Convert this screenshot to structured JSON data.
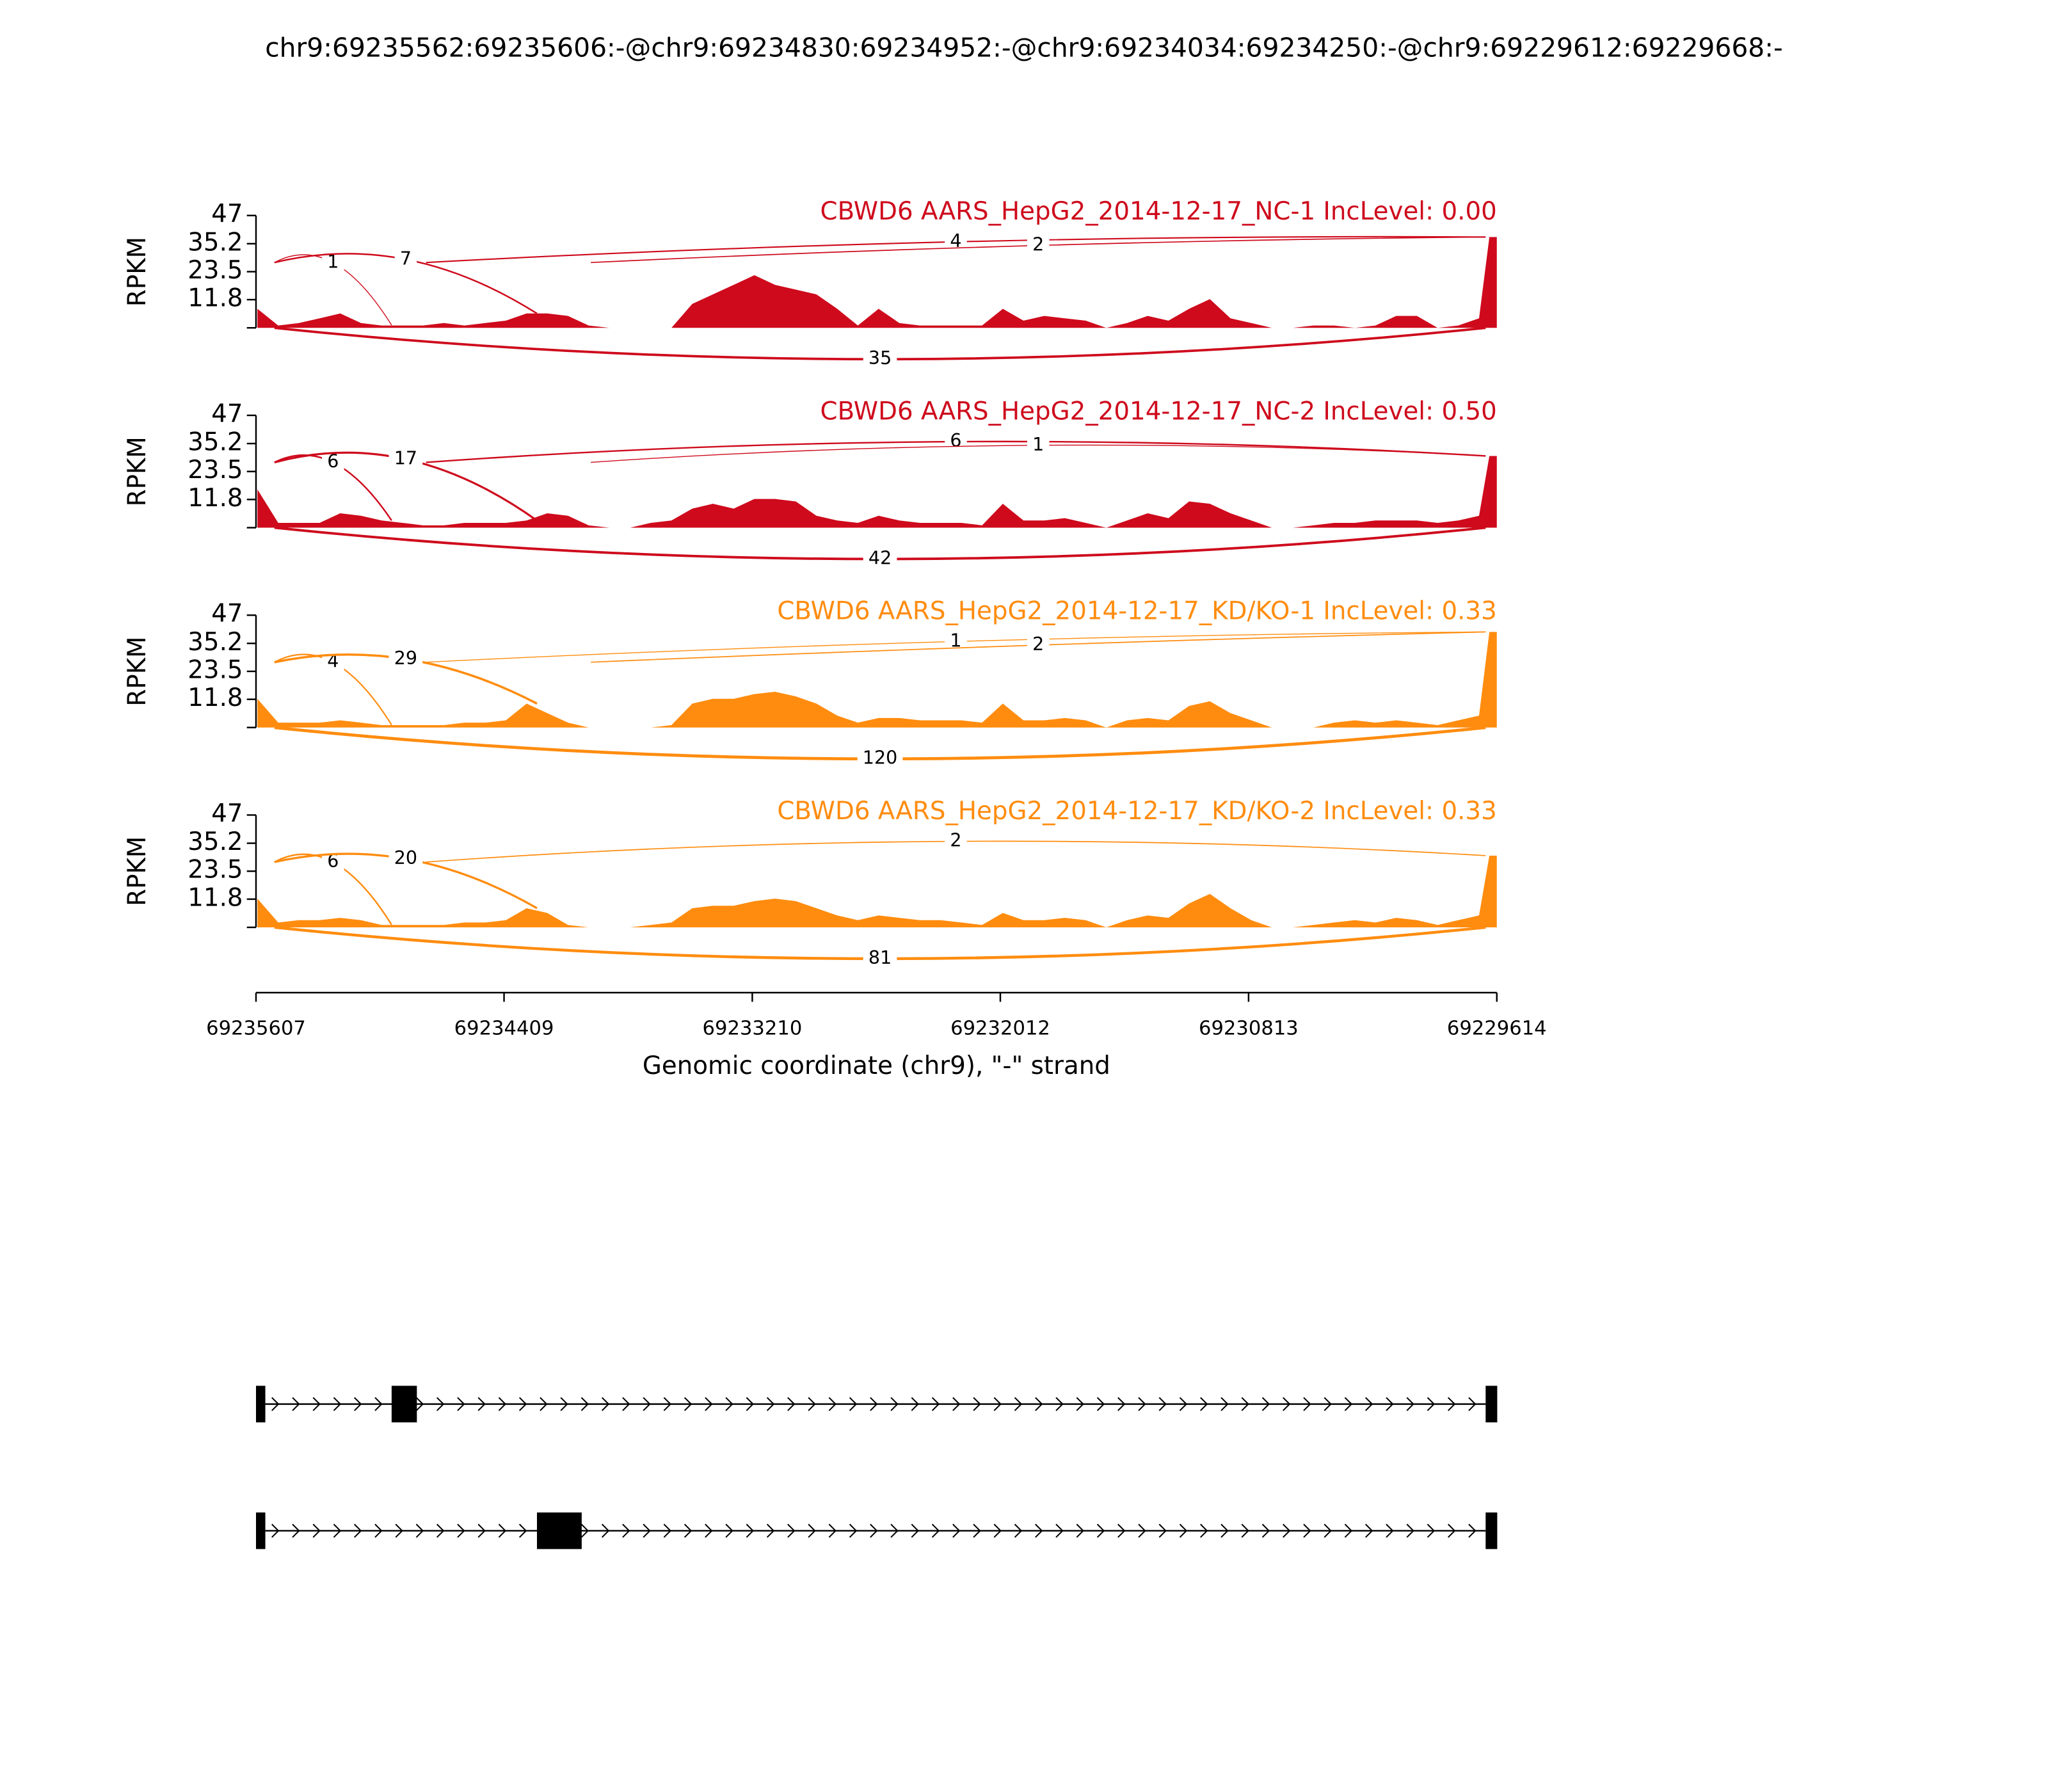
{
  "title": "chr9:69235562:69235606:-@chr9:69234830:69234952:-@chr9:69234034:69234250:-@chr9:69229612:69229668:-",
  "x_axis": {
    "x": [
      69235600,
      69235500,
      69235400,
      69235300,
      69235200,
      69235100,
      69235000,
      69234900,
      69234800,
      69234700,
      69234600,
      69234500,
      69234400,
      69234300,
      69234200,
      69234100,
      69234000,
      69233900,
      69233800,
      69233700,
      69233600,
      69233500,
      69233400,
      69233300,
      69233200,
      69233100,
      69233000,
      69232900,
      69232800,
      69232700,
      69232600,
      69232500,
      69232400,
      69232300,
      69232200,
      69232100,
      69232000,
      69231900,
      69231800,
      69231700,
      69231600,
      69231500,
      69231400,
      69231300,
      69231200,
      69231100,
      69231000,
      69230900,
      69230800,
      69230700,
      69230600,
      69230500,
      69230400,
      69230300,
      69230200,
      69230100,
      69230000,
      69229900,
      69229800,
      69229700,
      69229650,
      69229614
    ],
    "xlim": [
      69235607,
      69229614
    ],
    "xticks": [
      69235607,
      69234409,
      69233210,
      69232012,
      69230813,
      69229614
    ],
    "xlabel": "Genomic coordinate (chr9), \"-\" strand"
  },
  "chart_data": [
    {
      "type": "area",
      "title": "CBWD6 AARS_HepG2_2014-12-17_NC-1 IncLevel: 0.00",
      "ylabel": "RPKM",
      "color": "#ce0a1c",
      "ylim": [
        0,
        47
      ],
      "yticks": [
        11.8,
        23.5,
        35.2,
        47
      ],
      "values": [
        8,
        1,
        2,
        4,
        6,
        2,
        1,
        1,
        1,
        2,
        1,
        2,
        3,
        6,
        6,
        5,
        1,
        0,
        0,
        0,
        0,
        10,
        14,
        18,
        22,
        18,
        16,
        14,
        8,
        1,
        8,
        2,
        1,
        1,
        1,
        1,
        8,
        3,
        5,
        4,
        3,
        0,
        2,
        5,
        3,
        8,
        12,
        4,
        2,
        0,
        0,
        1,
        1,
        0,
        1,
        5,
        5,
        0,
        1,
        4,
        38,
        38
      ],
      "junctions": [
        {
          "start": 69235562,
          "end": 69234952,
          "count": 1
        },
        {
          "start": 69235562,
          "end": 69234250,
          "count": 7
        },
        {
          "start": 69234830,
          "end": 69229668,
          "count": 4
        },
        {
          "start": 69234034,
          "end": 69229668,
          "count": 2
        }
      ],
      "skip_junction": {
        "start": 69235562,
        "end": 69229668,
        "count": 35
      }
    },
    {
      "type": "area",
      "title": "CBWD6 AARS_HepG2_2014-12-17_NC-2 IncLevel: 0.50",
      "ylabel": "RPKM",
      "color": "#ce0a1c",
      "ylim": [
        0,
        47
      ],
      "yticks": [
        11.8,
        23.5,
        35.2,
        47
      ],
      "values": [
        16,
        2,
        2,
        2,
        6,
        5,
        3,
        2,
        1,
        1,
        2,
        2,
        2,
        3,
        6,
        5,
        1,
        0,
        0,
        2,
        3,
        8,
        10,
        8,
        12,
        12,
        11,
        5,
        3,
        2,
        5,
        3,
        2,
        2,
        2,
        1,
        10,
        3,
        3,
        4,
        2,
        0,
        3,
        6,
        4,
        11,
        10,
        6,
        3,
        0,
        0,
        1,
        2,
        2,
        3,
        3,
        3,
        2,
        3,
        5,
        30,
        30
      ],
      "junctions": [
        {
          "start": 69235562,
          "end": 69234952,
          "count": 6
        },
        {
          "start": 69235562,
          "end": 69234250,
          "count": 17
        },
        {
          "start": 69234830,
          "end": 69229668,
          "count": 6
        },
        {
          "start": 69234034,
          "end": 69229668,
          "count": 1
        }
      ],
      "skip_junction": {
        "start": 69235562,
        "end": 69229668,
        "count": 42
      }
    },
    {
      "type": "area",
      "title": "CBWD6 AARS_HepG2_2014-12-17_KD/KO-1 IncLevel: 0.33",
      "ylabel": "RPKM",
      "color": "#ff8c0f",
      "ylim": [
        0,
        47
      ],
      "yticks": [
        11.8,
        23.5,
        35.2,
        47
      ],
      "values": [
        12,
        2,
        2,
        2,
        3,
        2,
        1,
        1,
        1,
        1,
        2,
        2,
        3,
        10,
        6,
        2,
        0,
        0,
        0,
        0,
        1,
        10,
        12,
        12,
        14,
        15,
        13,
        10,
        5,
        2,
        4,
        4,
        3,
        3,
        3,
        2,
        10,
        3,
        3,
        4,
        3,
        0,
        3,
        4,
        3,
        9,
        11,
        6,
        3,
        0,
        0,
        0,
        2,
        3,
        2,
        3,
        2,
        1,
        3,
        5,
        40,
        40
      ],
      "junctions": [
        {
          "start": 69235562,
          "end": 69234952,
          "count": 4
        },
        {
          "start": 69235562,
          "end": 69234250,
          "count": 29
        },
        {
          "start": 69234830,
          "end": 69229668,
          "count": 1
        },
        {
          "start": 69234034,
          "end": 69229668,
          "count": 2
        }
      ],
      "skip_junction": {
        "start": 69235562,
        "end": 69229668,
        "count": 120
      }
    },
    {
      "type": "area",
      "title": "CBWD6 AARS_HepG2_2014-12-17_KD/KO-2 IncLevel: 0.33",
      "ylabel": "RPKM",
      "color": "#ff8c0f",
      "ylim": [
        0,
        47
      ],
      "yticks": [
        11.8,
        23.5,
        35.2,
        47
      ],
      "values": [
        12,
        2,
        3,
        3,
        4,
        3,
        1,
        1,
        1,
        1,
        2,
        2,
        3,
        8,
        6,
        1,
        0,
        0,
        0,
        1,
        2,
        8,
        9,
        9,
        11,
        12,
        11,
        8,
        5,
        3,
        5,
        4,
        3,
        3,
        2,
        1,
        6,
        3,
        3,
        4,
        3,
        0,
        3,
        5,
        4,
        10,
        14,
        8,
        3,
        0,
        0,
        1,
        2,
        3,
        2,
        4,
        3,
        1,
        3,
        5,
        30,
        30
      ],
      "junctions": [
        {
          "start": 69235562,
          "end": 69234952,
          "count": 6
        },
        {
          "start": 69235562,
          "end": 69234250,
          "count": 20
        },
        {
          "start": 69234830,
          "end": 69229668,
          "count": 2
        }
      ],
      "skip_junction": {
        "start": 69235562,
        "end": 69229668,
        "count": 81
      }
    }
  ],
  "transcripts": [
    {
      "exons": [
        [
          69235607,
          69235562
        ],
        [
          69234952,
          69234830
        ],
        [
          69229668,
          69229612
        ]
      ]
    },
    {
      "exons": [
        [
          69235607,
          69235562
        ],
        [
          69234250,
          69234034
        ],
        [
          69229668,
          69229612
        ]
      ]
    }
  ]
}
